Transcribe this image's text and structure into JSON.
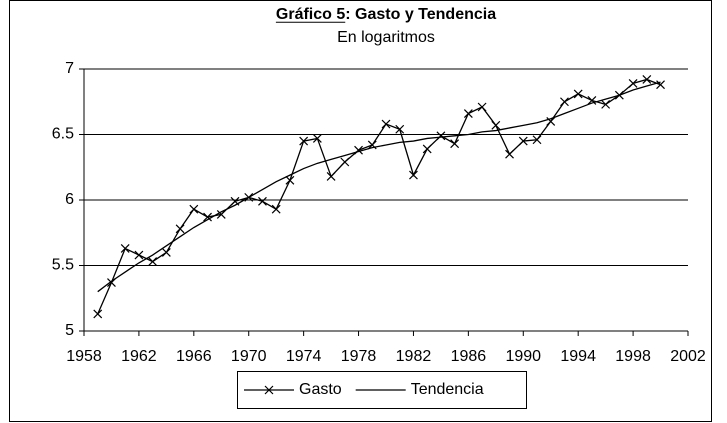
{
  "chart_data": {
    "type": "line",
    "title": "Gráfico 5: Gasto y Tendencia",
    "subtitle": "En logaritmos",
    "x": [
      1959,
      1960,
      1961,
      1962,
      1963,
      1964,
      1965,
      1966,
      1967,
      1968,
      1969,
      1970,
      1971,
      1972,
      1973,
      1974,
      1975,
      1976,
      1977,
      1978,
      1979,
      1980,
      1981,
      1982,
      1983,
      1984,
      1985,
      1986,
      1987,
      1988,
      1989,
      1990,
      1991,
      1992,
      1993,
      1994,
      1995,
      1996,
      1997,
      1998,
      1999,
      2000
    ],
    "series": [
      {
        "name": "Gasto",
        "color": "#000000",
        "marker": "x",
        "values": [
          5.13,
          5.37,
          5.63,
          5.58,
          5.53,
          5.6,
          5.78,
          5.93,
          5.87,
          5.89,
          5.99,
          6.02,
          5.99,
          5.93,
          6.15,
          6.45,
          6.47,
          6.18,
          6.29,
          6.38,
          6.42,
          6.58,
          6.54,
          6.19,
          6.39,
          6.49,
          6.43,
          6.66,
          6.71,
          6.57,
          6.35,
          6.45,
          6.46,
          6.6,
          6.75,
          6.81,
          6.76,
          6.73,
          6.8,
          6.89,
          6.92,
          6.88
        ]
      },
      {
        "name": "Tendencia",
        "color": "#000000",
        "values": [
          5.3,
          5.38,
          5.45,
          5.52,
          5.58,
          5.65,
          5.72,
          5.79,
          5.85,
          5.91,
          5.96,
          6.02,
          6.08,
          6.14,
          6.19,
          6.24,
          6.28,
          6.31,
          6.34,
          6.37,
          6.4,
          6.42,
          6.44,
          6.45,
          6.47,
          6.48,
          6.49,
          6.5,
          6.52,
          6.53,
          6.55,
          6.57,
          6.59,
          6.62,
          6.66,
          6.7,
          6.74,
          6.77,
          6.8,
          6.84,
          6.87,
          6.9
        ]
      }
    ],
    "xlim": [
      1958,
      2002
    ],
    "xticks": [
      1958,
      1962,
      1966,
      1970,
      1974,
      1978,
      1982,
      1986,
      1990,
      1994,
      1998,
      2002
    ],
    "ylim": [
      5,
      7
    ],
    "yticks": [
      5,
      5.5,
      6,
      6.5,
      7
    ],
    "grid": true,
    "legend": "bottom"
  }
}
